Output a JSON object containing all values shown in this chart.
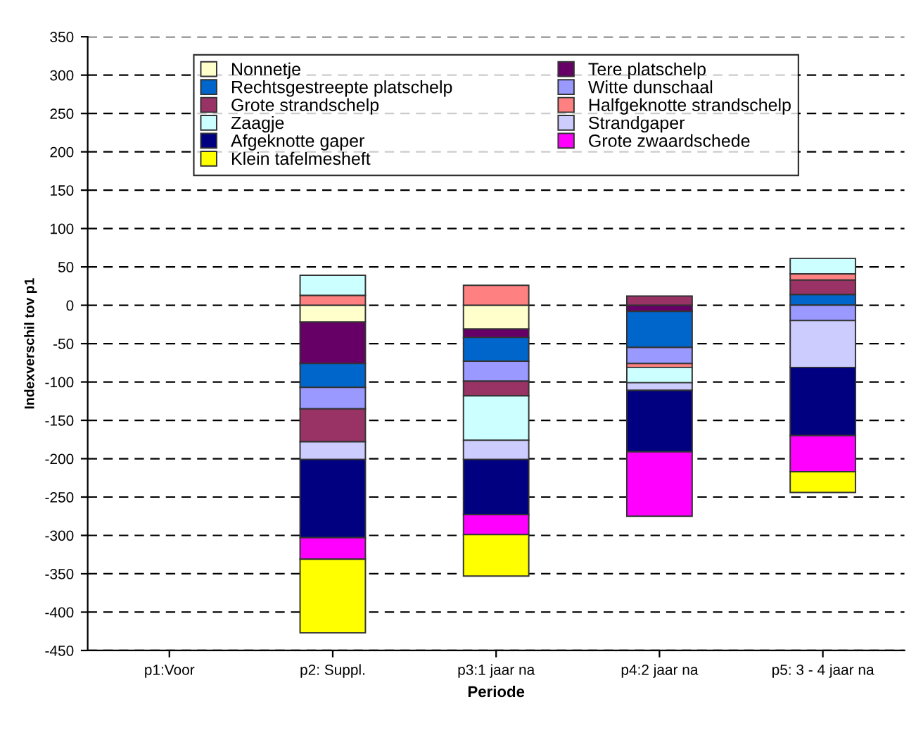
{
  "chart_data": {
    "type": "bar",
    "stacked": true,
    "xlabel": "Periode",
    "ylabel": "Indexverschil tov p1",
    "categories": [
      "p1:Voor",
      "p2: Suppl.",
      "p3:1 jaar na",
      "p4:2 jaar na",
      "p5: 3 - 4 jaar na"
    ],
    "series": [
      {
        "name": "Nonnetje",
        "color": "#ffffcc",
        "values": [
          null,
          -22,
          -31,
          null,
          null
        ]
      },
      {
        "name": "Tere platschelp",
        "color": "#660066",
        "values": [
          null,
          -54,
          -11,
          -8,
          null
        ]
      },
      {
        "name": "Rechtsgestreepte platschelp",
        "color": "#0066cc",
        "values": [
          null,
          -31,
          -31,
          -47,
          14
        ]
      },
      {
        "name": "Witte dunschaal",
        "color": "#9999ff",
        "values": [
          null,
          -28,
          -26,
          -21,
          -20
        ]
      },
      {
        "name": "Grote strandschelp",
        "color": "#993366",
        "values": [
          null,
          -43,
          -19,
          12,
          19
        ]
      },
      {
        "name": "Halfgeknotte strandschelp",
        "color": "#ff8080",
        "values": [
          null,
          13,
          26,
          -5,
          8
        ]
      },
      {
        "name": "Zaagje",
        "color": "#ccffff",
        "values": [
          null,
          26,
          -58,
          -20,
          20
        ]
      },
      {
        "name": "Strandgaper",
        "color": "#ccccff",
        "values": [
          null,
          -23,
          -25,
          -10,
          -61
        ]
      },
      {
        "name": "Afgeknotte gaper",
        "color": "#000080",
        "values": [
          null,
          -102,
          -72,
          -80,
          -89
        ]
      },
      {
        "name": "Grote zwaardschede",
        "color": "#ff00ff",
        "values": [
          null,
          -28,
          -26,
          -84,
          -47
        ]
      },
      {
        "name": "Klein tafelmesheft",
        "color": "#ffff00",
        "values": [
          null,
          -96,
          -54,
          null,
          -27
        ]
      }
    ],
    "ylim": [
      -450,
      350
    ],
    "yticks": [
      -450,
      -400,
      -350,
      -300,
      -250,
      -200,
      -150,
      -100,
      -50,
      0,
      50,
      100,
      150,
      200,
      250,
      300,
      350
    ],
    "grid": "y",
    "legend": "top"
  }
}
